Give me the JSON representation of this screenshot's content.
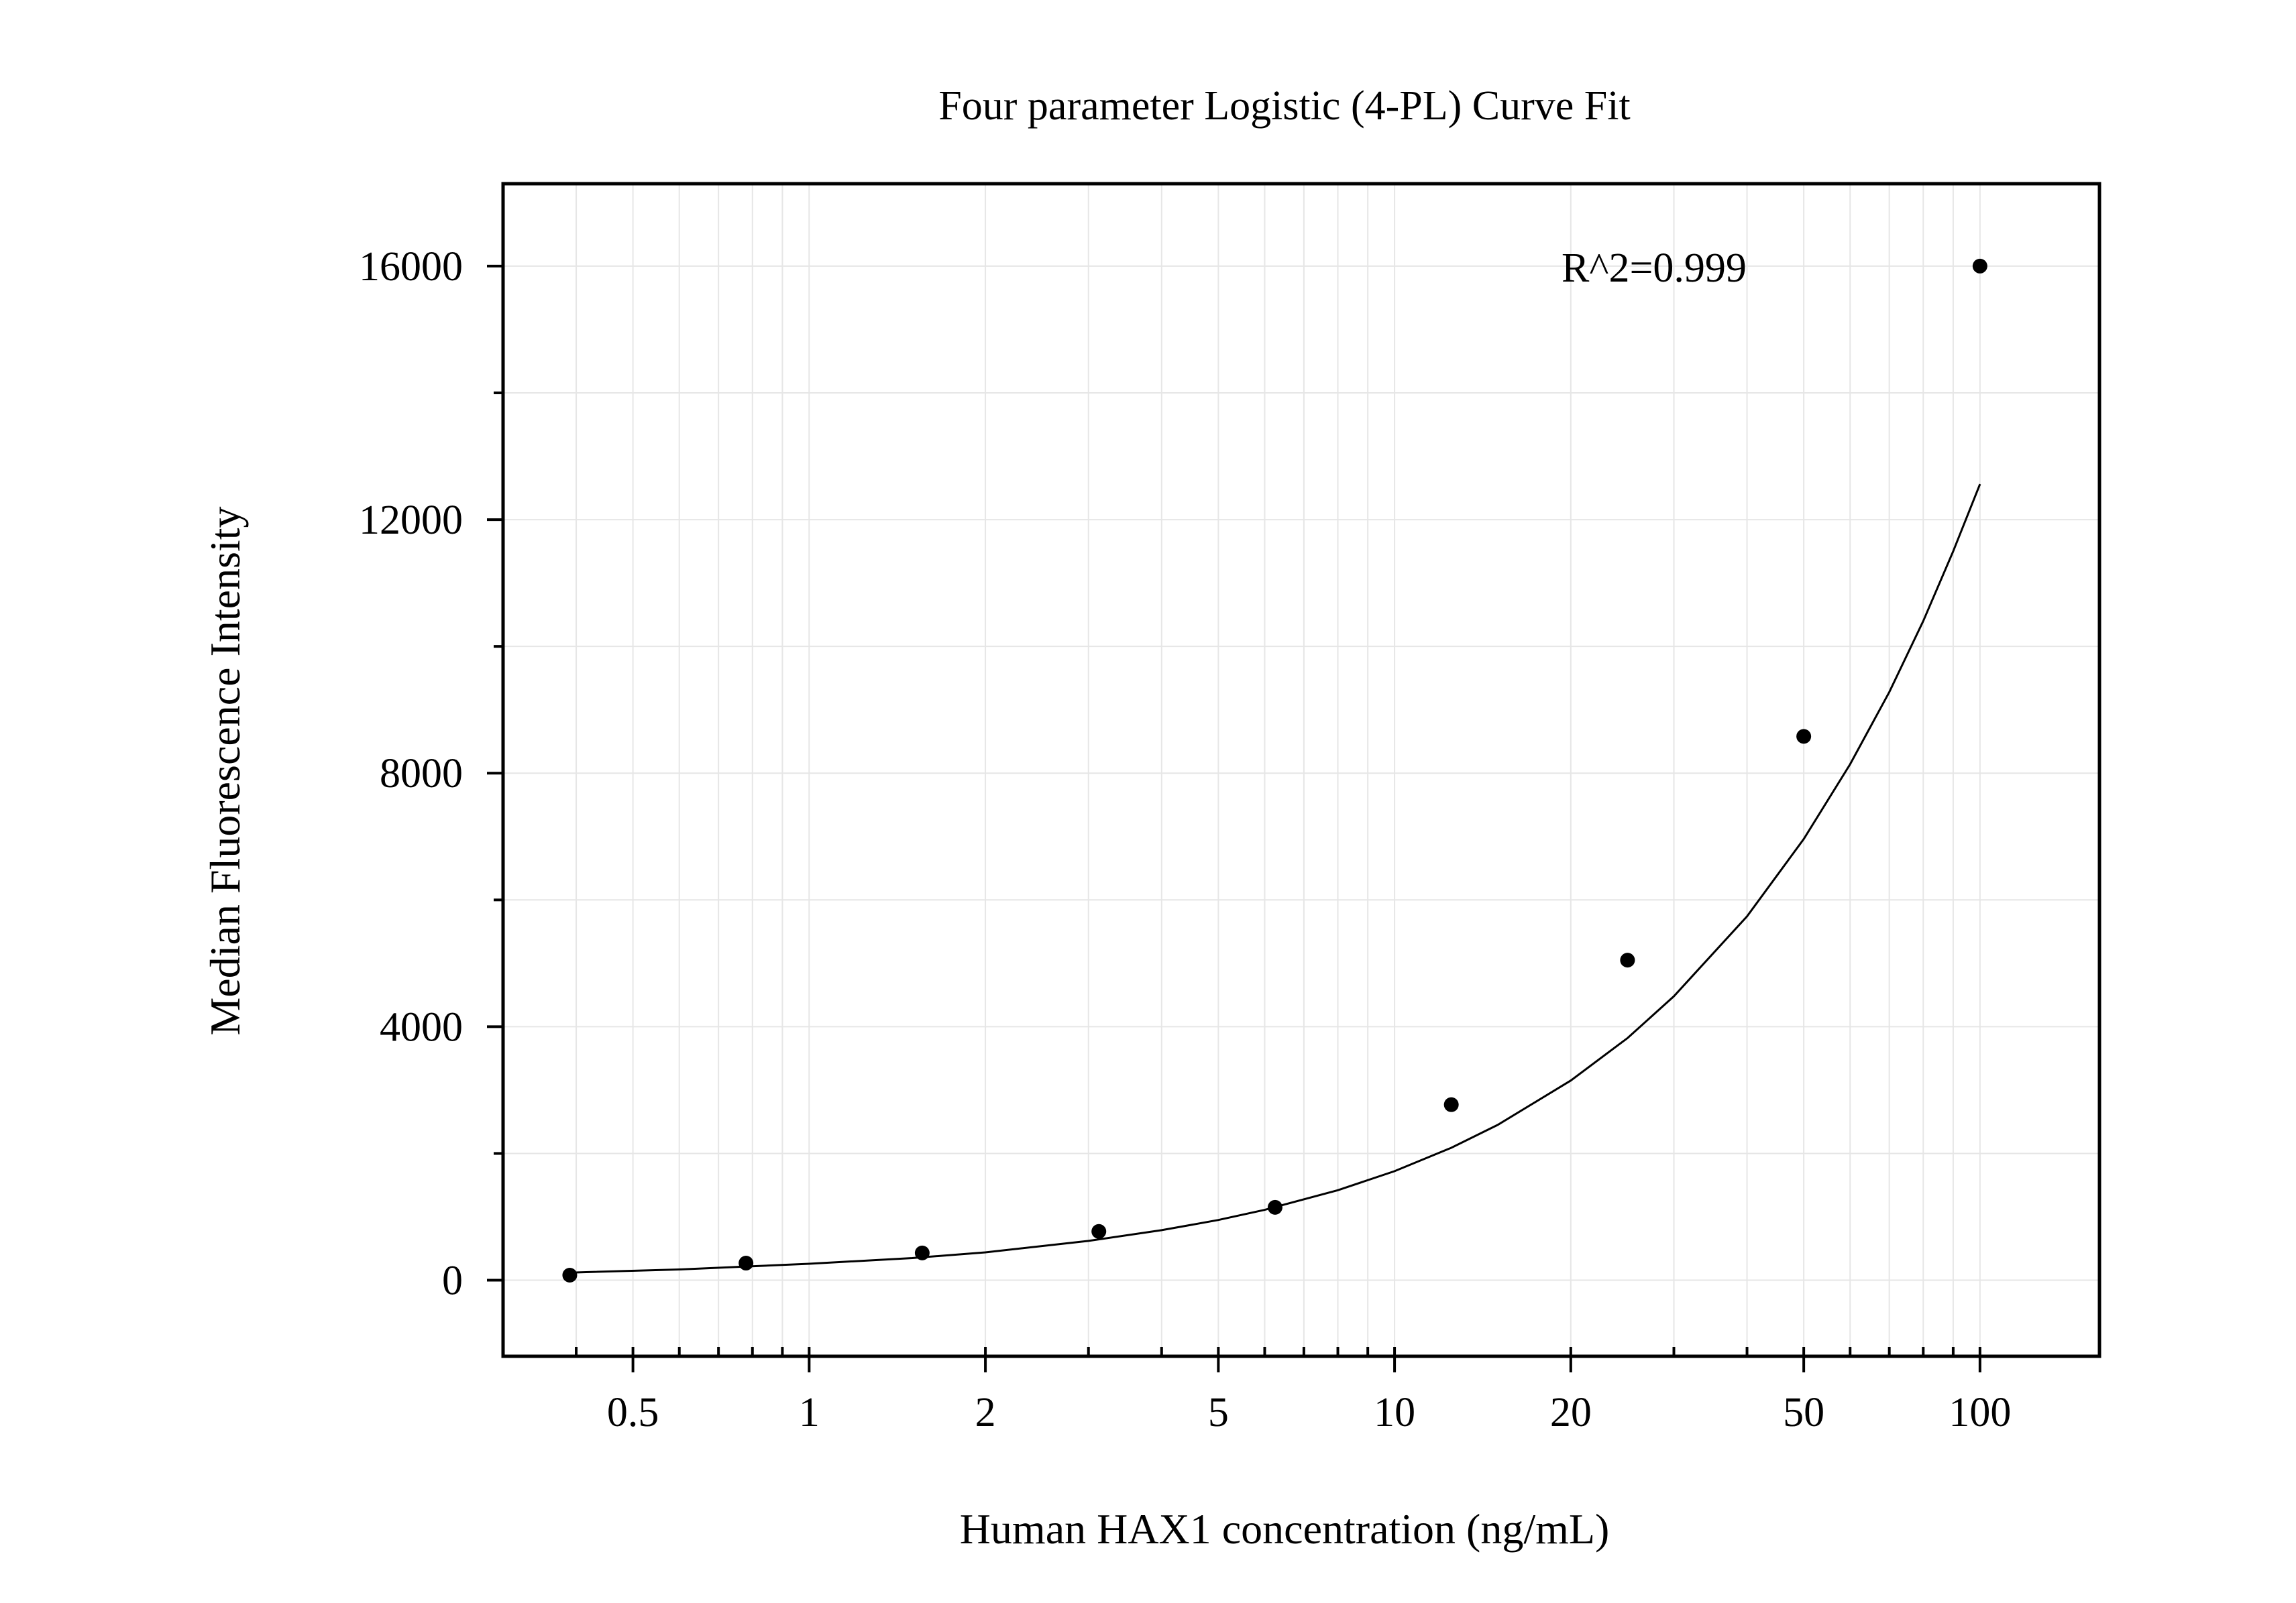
{
  "chart_data": {
    "type": "scatter",
    "title": "Four parameter Logistic (4-PL) Curve Fit",
    "xlabel": "Human HAX1 concentration (ng/mL)",
    "ylabel": "Median Fluorescence Intensity",
    "x_scale": "log",
    "xlim": [
      0.3,
      160
    ],
    "ylim": [
      -1200,
      17300
    ],
    "x_ticks": [
      0.5,
      1,
      2,
      5,
      10,
      20,
      50,
      100
    ],
    "x_tick_labels": [
      "0.5",
      "1",
      "2",
      "5",
      "10",
      "20",
      "50",
      "100"
    ],
    "y_ticks": [
      0,
      4000,
      8000,
      12000,
      16000
    ],
    "y_tick_labels": [
      "0",
      "4000",
      "8000",
      "12000",
      "16000"
    ],
    "grid": true,
    "annotation": "R^2=0.999",
    "series": [
      {
        "type": "scatter",
        "x": [
          0.39,
          0.78,
          1.56,
          3.125,
          6.25,
          12.5,
          25,
          50,
          100
        ],
        "y": [
          80,
          270,
          430,
          770,
          1150,
          2770,
          5050,
          8580,
          16000
        ]
      },
      {
        "type": "line",
        "fit": "4PL",
        "x": [
          0.39,
          0.6,
          1,
          1.5,
          2,
          3,
          4,
          5,
          6,
          8,
          10,
          12.5,
          15,
          20,
          25,
          30,
          40,
          50,
          60,
          70,
          80,
          90,
          100
        ],
        "y": [
          120,
          170,
          260,
          350,
          440,
          620,
          790,
          950,
          1110,
          1420,
          1720,
          2090,
          2450,
          3150,
          3820,
          4480,
          5740,
          6960,
          8140,
          9280,
          10400,
          11500,
          12560
        ]
      }
    ],
    "colors": {
      "marker": "#000000",
      "line": "#000000",
      "grid": "#e6e6e6",
      "frame": "#000000"
    }
  }
}
